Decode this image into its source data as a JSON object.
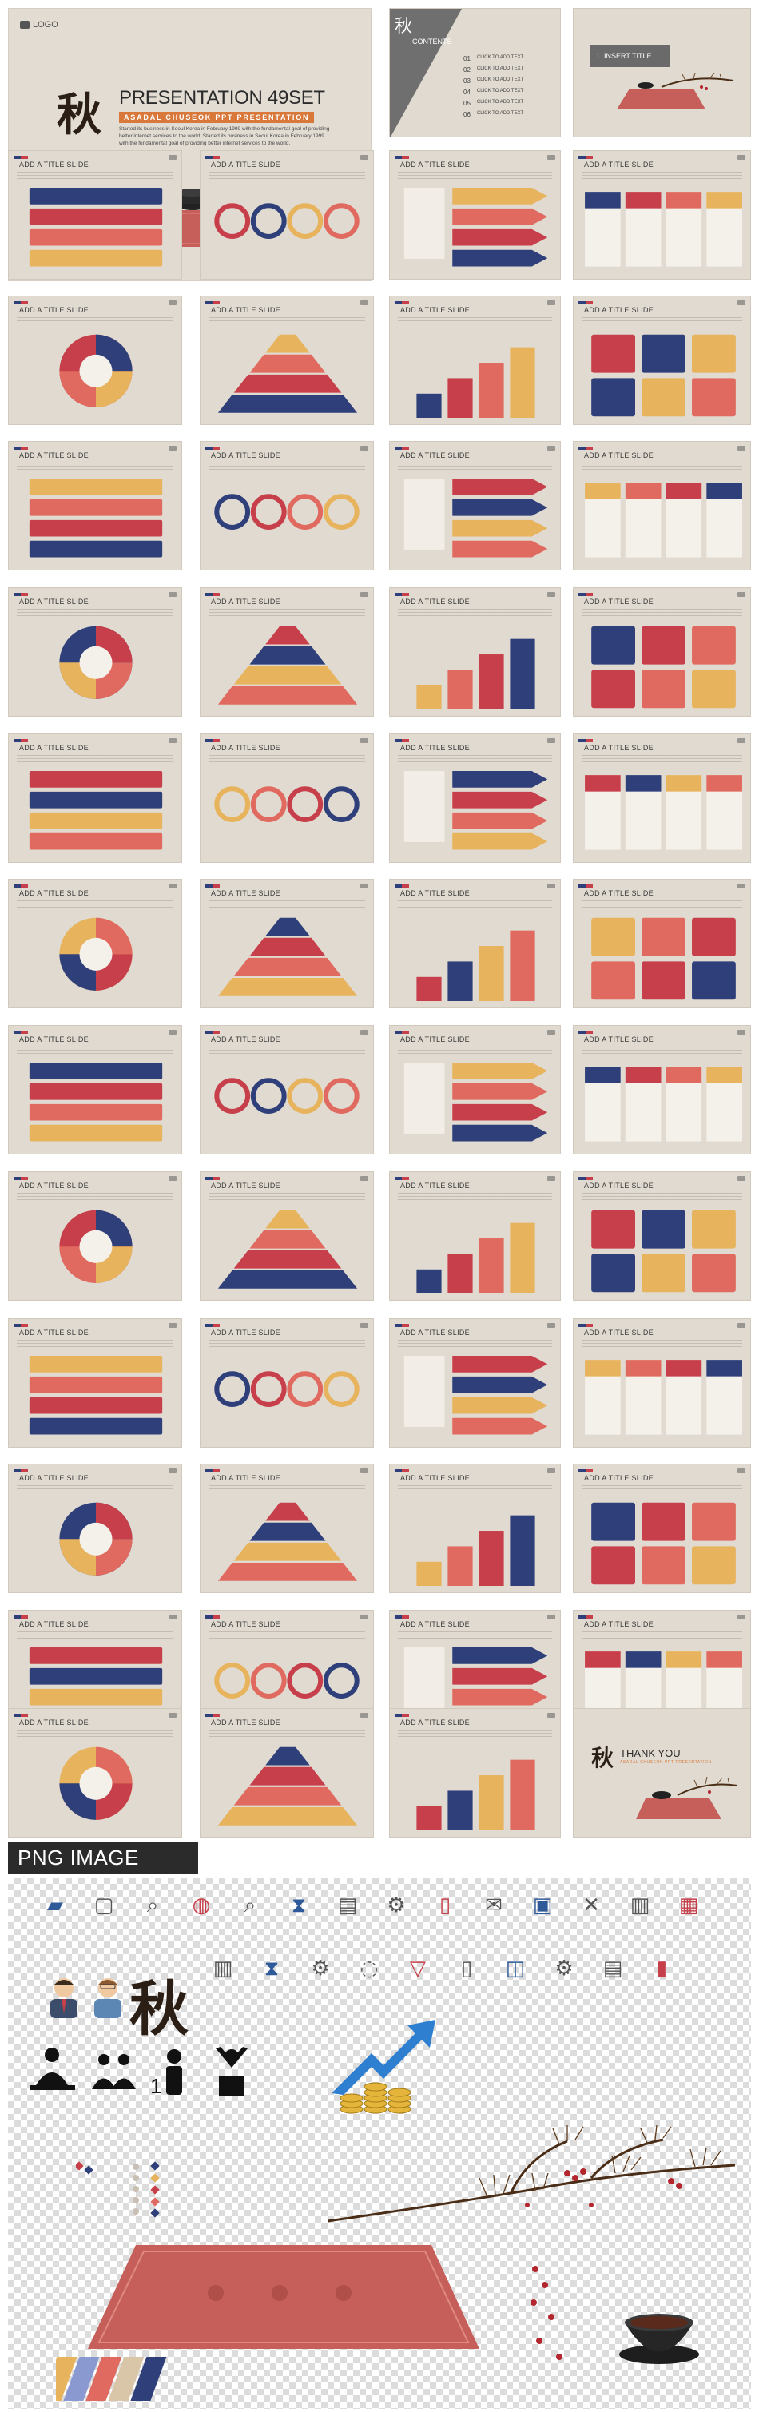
{
  "hero": {
    "logo": "LOGO",
    "calligraphy": "秋",
    "title": "PRESENTATION 49SET",
    "subtitle": "ASADAL CHUSEOK PPT PRESENTATION",
    "body": "Started its business in Seoul Korea in February 1999 with the fundamental goal of providing better internet services to the world. Started its business in Seoul Korea in February 1999 with the fundamental goal of providing better internet services to the world."
  },
  "contents_slide": {
    "heading": "CONTENTS",
    "items": [
      {
        "num": "01",
        "text": "CLICK TO ADD TEXT"
      },
      {
        "num": "02",
        "text": "CLICK TO ADD TEXT"
      },
      {
        "num": "03",
        "text": "CLICK TO ADD TEXT"
      },
      {
        "num": "04",
        "text": "CLICK TO ADD TEXT"
      },
      {
        "num": "05",
        "text": "CLICK TO ADD TEXT"
      },
      {
        "num": "06",
        "text": "CLICK TO ADD TEXT"
      }
    ]
  },
  "insert_title_slide": {
    "label": "1. INSERT TITLE"
  },
  "slide_title": "ADD A TITLE SLIDE",
  "thank_you": {
    "calligraphy": "秋",
    "text": "THANK YOU",
    "subtitle": "ASADAL CHUSEOK PPT PRESENTATION"
  },
  "png_section": {
    "heading": "PNG IMAGE"
  },
  "colors": {
    "navy": "#2e3f7a",
    "red": "#c73f4a",
    "coral": "#e06a5f",
    "gold": "#e7b35c",
    "beige": "#e0dad0",
    "dark": "#2b2b2b"
  }
}
